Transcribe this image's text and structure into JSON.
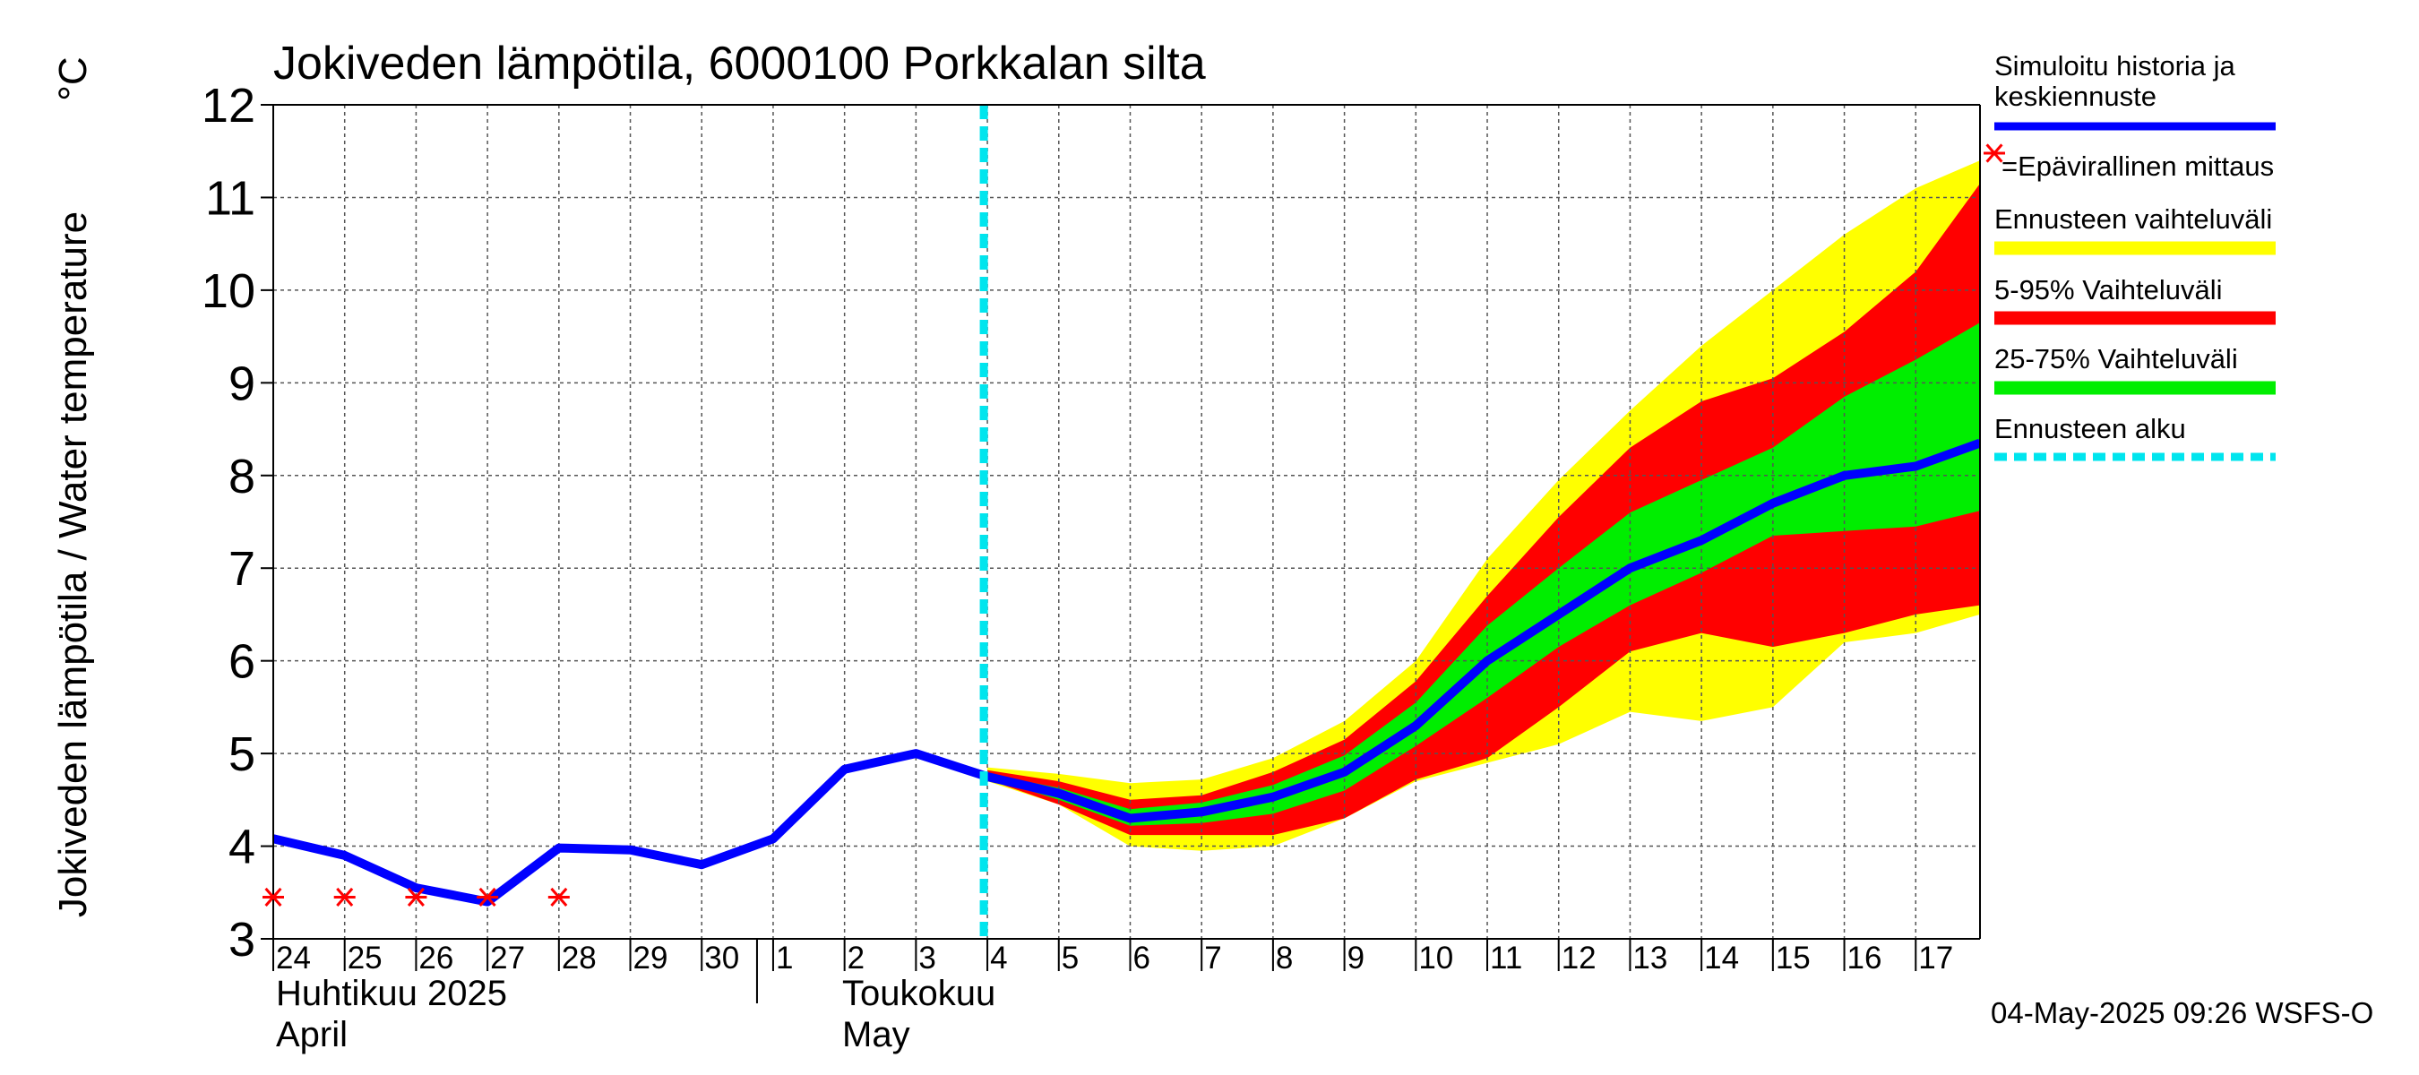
{
  "chart_data": {
    "type": "area",
    "title": "Jokiveden lämpötila, 6000100 Porkkalan silta",
    "ylabel": "Jokiveden lämpötila / Water temperature",
    "yunit": "°C",
    "ylim": [
      3,
      12
    ],
    "yticks": [
      3,
      4,
      5,
      6,
      7,
      8,
      9,
      10,
      11,
      12
    ],
    "xlim": [
      0,
      23.9
    ],
    "x_tick_labels": [
      "24",
      "25",
      "26",
      "27",
      "28",
      "29",
      "30",
      "1",
      "2",
      "3",
      "4",
      "5",
      "6",
      "7",
      "8",
      "9",
      "10",
      "11",
      "12",
      "13",
      "14",
      "15",
      "16",
      "17"
    ],
    "month_labels": [
      {
        "fi": "Huhtikuu  2025",
        "en": "April",
        "day_index": 0
      },
      {
        "fi": "Toukokuu",
        "en": "May",
        "day_index": 8
      }
    ],
    "forecast_start": 9.95,
    "history_series": {
      "name": "Simuloitu historia ja keskiennuste",
      "x": [
        0,
        1,
        2,
        3,
        4,
        5,
        6,
        7,
        8,
        9,
        10
      ],
      "y": [
        4.08,
        3.9,
        3.55,
        3.4,
        3.98,
        3.96,
        3.8,
        4.08,
        4.83,
        5.0,
        4.75
      ]
    },
    "forecast_x": [
      10,
      11,
      12,
      13,
      14,
      15,
      16,
      17,
      18,
      19,
      20,
      21,
      22,
      23,
      23.9
    ],
    "forecast_median": [
      4.75,
      4.57,
      4.3,
      4.37,
      4.53,
      4.8,
      5.3,
      6.0,
      6.5,
      7.0,
      7.3,
      7.7,
      8.0,
      8.1,
      8.35
    ],
    "band_full": {
      "lower": [
        4.7,
        4.45,
        4.0,
        3.95,
        4.0,
        4.3,
        4.7,
        4.9,
        5.1,
        5.45,
        5.35,
        5.5,
        6.2,
        6.3,
        6.5
      ],
      "upper": [
        4.85,
        4.78,
        4.68,
        4.72,
        4.95,
        5.35,
        6.0,
        7.1,
        7.95,
        8.7,
        9.4,
        10.0,
        10.6,
        11.1,
        11.4
      ]
    },
    "band_5_95": {
      "lower": [
        4.72,
        4.45,
        4.12,
        4.12,
        4.12,
        4.3,
        4.72,
        4.95,
        5.5,
        6.1,
        6.3,
        6.15,
        6.3,
        6.5,
        6.6
      ]
    },
    "band_5_95_upper": [
      4.82,
      4.7,
      4.5,
      4.55,
      4.8,
      5.15,
      5.78,
      6.7,
      7.55,
      8.3,
      8.8,
      9.05,
      9.55,
      10.2,
      11.15
    ],
    "band_25_75": {
      "lower": [
        4.74,
        4.5,
        4.22,
        4.25,
        4.35,
        4.6,
        5.08,
        5.6,
        6.15,
        6.6,
        6.95,
        7.35,
        7.4,
        7.45,
        7.62
      ],
      "upper": [
        4.78,
        4.63,
        4.4,
        4.47,
        4.66,
        4.98,
        5.55,
        6.38,
        7.0,
        7.6,
        7.95,
        8.3,
        8.85,
        9.25,
        9.65
      ]
    },
    "observations": {
      "name": "Epävirallinen mittaus",
      "x": [
        0,
        1,
        2,
        3,
        4
      ],
      "y": [
        3.45,
        3.45,
        3.45,
        3.45,
        3.45
      ]
    },
    "legend": [
      {
        "label": "Simuloitu historia ja keskiennuste",
        "color": "#0000ff",
        "style": "line"
      },
      {
        "label": "=Epävirallinen mittaus",
        "color": "#ff0000",
        "style": "star"
      },
      {
        "label": "Ennusteen vaihteluväli",
        "color": "#ffff00",
        "style": "band"
      },
      {
        "label": "5-95% Vaihteluväli",
        "color": "#ff0000",
        "style": "band"
      },
      {
        "label": "25-75% Vaihteluväli",
        "color": "#00ee00",
        "style": "band"
      },
      {
        "label": "Ennusteen alku",
        "color": "#00e5ee",
        "style": "dash"
      }
    ],
    "timestamp": "04-May-2025 09:26 WSFS-O",
    "colors": {
      "median": "#0000ff",
      "full": "#ffff00",
      "p5_95": "#ff0000",
      "p25_75": "#00ee00",
      "forecast_line": "#00e5ee",
      "obs": "#ff0000",
      "grid": "#555555"
    }
  }
}
